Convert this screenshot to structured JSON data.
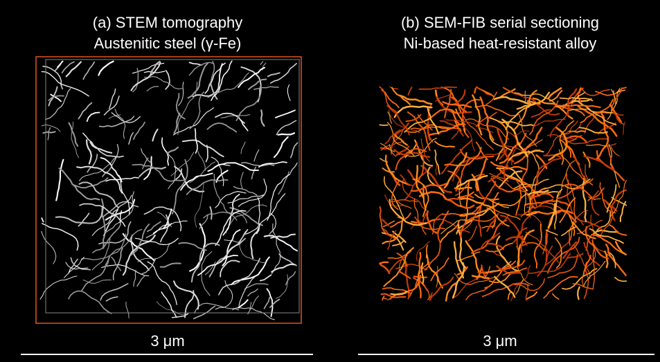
{
  "panels": [
    {
      "title": "(a) STEM tomography",
      "subtitle": "Austenitic steel (γ-Fe)",
      "scale_label": "3 μm"
    },
    {
      "title": "(b) SEM-FIB serial sectioning",
      "subtitle": "Ni-based heat-resistant alloy",
      "scale_label": "3 μm"
    }
  ]
}
